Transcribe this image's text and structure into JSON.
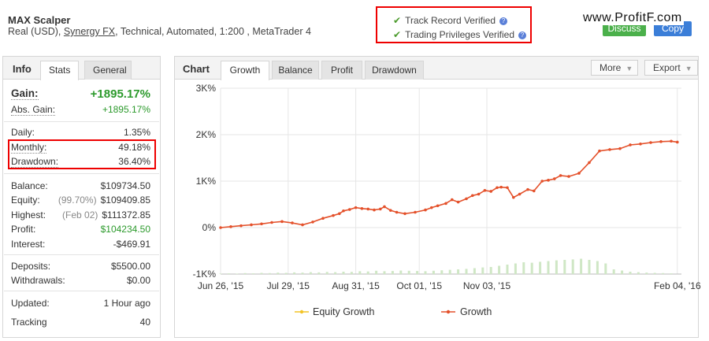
{
  "header": {
    "title": "MAX Scalper",
    "subtitle_prefix": "Real (USD), ",
    "broker": "Synergy FX",
    "subtitle_suffix": ", Technical, Automated, 1:200 , MetaTrader 4",
    "verified_1": "Track Record Verified",
    "verified_2": "Trading Privileges Verified",
    "button_green": "Discuss",
    "button_blue": "Copy",
    "watermark": "www.ProfitF.com"
  },
  "left_tabs": {
    "info": "Info",
    "stats": "Stats",
    "general": "General"
  },
  "stats": {
    "gain_label": "Gain:",
    "gain_value": "+1895.17%",
    "abs_gain_label": "Abs. Gain:",
    "abs_gain_value": "+1895.17%",
    "daily_label": "Daily:",
    "daily_value": "1.35%",
    "monthly_label": "Monthly:",
    "monthly_value": "49.18%",
    "drawdown_label": "Drawdown:",
    "drawdown_value": "36.40%",
    "balance_label": "Balance:",
    "balance_value": "$109734.50",
    "equity_label": "Equity:",
    "equity_pct": "(99.70%)",
    "equity_value": "$109409.85",
    "highest_label": "Highest:",
    "highest_date": "(Feb 02)",
    "highest_value": "$111372.85",
    "profit_label": "Profit:",
    "profit_value": "$104234.50",
    "interest_label": "Interest:",
    "interest_value": "-$469.91",
    "deposits_label": "Deposits:",
    "deposits_value": "$5500.00",
    "withdrawals_label": "Withdrawals:",
    "withdrawals_value": "$0.00",
    "updated_label": "Updated:",
    "updated_value": "1 Hour ago",
    "tracking_label": "Tracking",
    "tracking_value": "40"
  },
  "chart_panel": {
    "title": "Chart",
    "tabs": [
      "Growth",
      "Balance",
      "Profit",
      "Drawdown"
    ],
    "more_label": "More",
    "export_label": "Export"
  },
  "colors": {
    "growth": "#e4512b",
    "equity": "#f3c426",
    "bars": "#cfe7c5",
    "grid": "#e6e6e6"
  },
  "chart_data": {
    "type": "line",
    "y_ticks": [
      "3K%",
      "2K%",
      "1K%",
      "0%",
      "-1K%"
    ],
    "y_tick_values": [
      3000,
      2000,
      1000,
      0,
      -1000
    ],
    "ylim": [
      -1000,
      3000
    ],
    "x_ticks": [
      "Jun 26, '15",
      "Jul 29, '15",
      "Aug 31, '15",
      "Oct 01, '15",
      "Nov 03, '15",
      "Feb 04, '16"
    ],
    "x_tick_positions": [
      0,
      33,
      66,
      97,
      130,
      223
    ],
    "x_range": [
      0,
      225
    ],
    "legend_position": "bottom",
    "series": [
      {
        "name": "Equity Growth",
        "values": []
      },
      {
        "name": "Growth",
        "x": [
          0,
          5,
          10,
          15,
          20,
          25,
          30,
          35,
          40,
          45,
          50,
          55,
          58,
          60,
          63,
          66,
          69,
          72,
          75,
          78,
          80,
          83,
          86,
          90,
          95,
          100,
          103,
          106,
          110,
          113,
          116,
          120,
          123,
          126,
          129,
          132,
          135,
          137,
          140,
          143,
          146,
          150,
          153,
          157,
          160,
          163,
          166,
          170,
          175,
          180,
          185,
          190,
          195,
          200,
          205,
          210,
          215,
          220,
          223
        ],
        "values": [
          0,
          20,
          40,
          60,
          80,
          110,
          130,
          100,
          60,
          120,
          200,
          260,
          300,
          360,
          390,
          430,
          410,
          400,
          380,
          400,
          450,
          370,
          330,
          300,
          330,
          380,
          430,
          470,
          520,
          600,
          550,
          620,
          690,
          720,
          800,
          780,
          860,
          870,
          860,
          650,
          720,
          820,
          790,
          1000,
          1020,
          1050,
          1120,
          1100,
          1170,
          1400,
          1650,
          1680,
          1700,
          1780,
          1800,
          1830,
          1850,
          1860,
          1840
        ]
      }
    ],
    "bars": {
      "x": [
        0,
        4,
        8,
        12,
        16,
        20,
        24,
        28,
        32,
        36,
        40,
        44,
        48,
        52,
        56,
        60,
        64,
        68,
        72,
        76,
        80,
        84,
        88,
        92,
        96,
        100,
        104,
        108,
        112,
        116,
        120,
        124,
        128,
        132,
        136,
        140,
        144,
        148,
        152,
        156,
        160,
        164,
        168,
        172,
        176,
        180,
        184,
        188,
        192,
        196,
        200,
        204,
        208,
        212,
        216,
        220
      ],
      "values": [
        2,
        3,
        2,
        4,
        3,
        5,
        4,
        6,
        5,
        7,
        6,
        8,
        7,
        9,
        8,
        10,
        9,
        12,
        11,
        14,
        12,
        13,
        15,
        14,
        13,
        12,
        14,
        16,
        18,
        20,
        22,
        25,
        28,
        30,
        35,
        40,
        45,
        50,
        48,
        52,
        55,
        58,
        60,
        62,
        65,
        60,
        55,
        45,
        20,
        15,
        10,
        8,
        6,
        5,
        4,
        3
      ]
    }
  }
}
